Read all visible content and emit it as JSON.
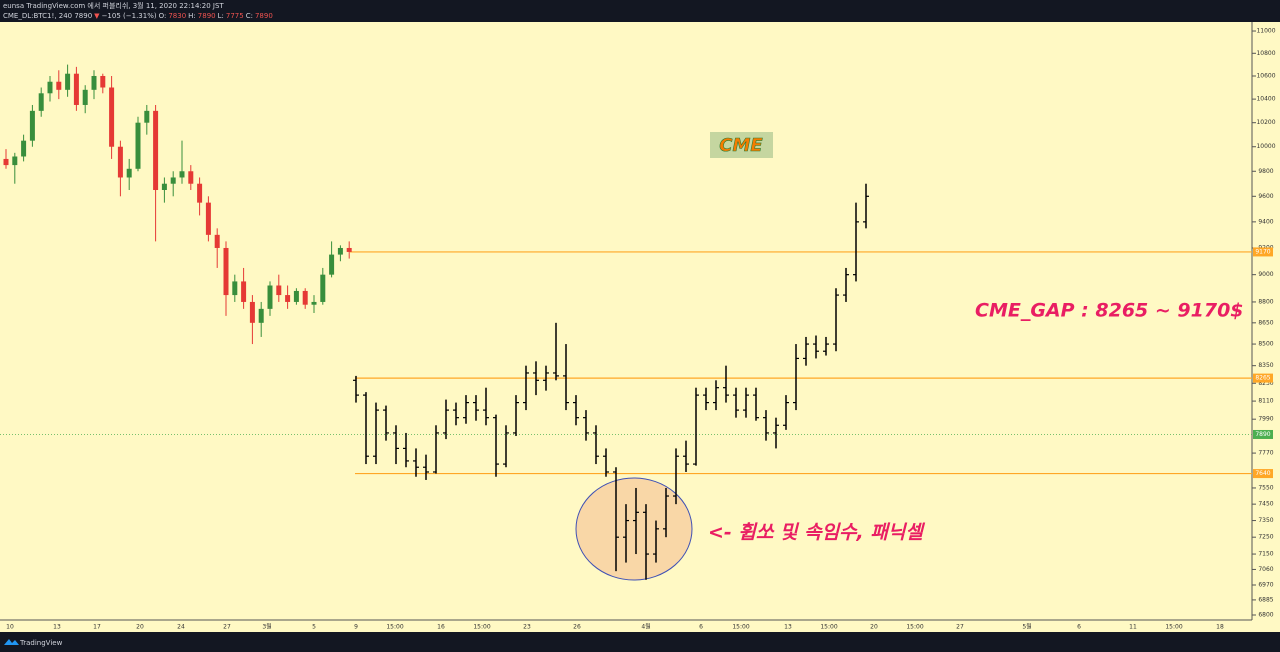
{
  "header": {
    "line1": "eunsa TradingView.com 에서 퍼블리쉬, 3월 11, 2020 22:14:20 JST",
    "line2": [
      "CME_DL:BTC1!, 240 7890",
      "▼",
      "−105 (−1.31%)",
      "O:",
      "7830",
      "H:",
      "7890",
      "L:",
      "7775",
      "C:",
      "7890"
    ]
  },
  "chart_data": {
    "type": "candlestick",
    "log_scale": true,
    "grid": false,
    "ylim": [
      6772,
      11082
    ],
    "yticks": [
      11000,
      10800,
      10600,
      10400,
      10200,
      10000,
      9800,
      9600,
      9400,
      9200,
      9000,
      8800,
      8650,
      8500,
      8350,
      8230,
      8110,
      7990,
      7770,
      7550,
      7450,
      7350,
      7250,
      7150,
      7060,
      6970,
      6885,
      6800
    ],
    "x_labels": [
      "10",
      "13",
      "17",
      "20",
      "24",
      "27",
      "3월",
      "5",
      "9",
      "15:00",
      "16",
      "15:00",
      "23",
      "26",
      "4월",
      "6",
      "15:00",
      "13",
      "15:00",
      "20",
      "15:00",
      "27",
      "5월",
      "6",
      "11",
      "15:00",
      "18"
    ],
    "series": [
      {
        "style": "candles",
        "up_color": "#388e3c",
        "down_color": "#e53935",
        "ohlc": [
          [
            9900,
            9980,
            9820,
            9850
          ],
          [
            9850,
            9950,
            9700,
            9920
          ],
          [
            9920,
            10100,
            9880,
            10050
          ],
          [
            10050,
            10350,
            10000,
            10300
          ],
          [
            10300,
            10500,
            10250,
            10450
          ],
          [
            10450,
            10600,
            10380,
            10550
          ],
          [
            10550,
            10650,
            10400,
            10480
          ],
          [
            10480,
            10700,
            10420,
            10620
          ],
          [
            10620,
            10680,
            10300,
            10350
          ],
          [
            10350,
            10520,
            10280,
            10480
          ],
          [
            10480,
            10650,
            10400,
            10600
          ],
          [
            10600,
            10620,
            10450,
            10500
          ],
          [
            10500,
            10600,
            9900,
            10000
          ],
          [
            10000,
            10050,
            9600,
            9750
          ],
          [
            9750,
            9900,
            9650,
            9820
          ],
          [
            9820,
            10250,
            9800,
            10200
          ],
          [
            10200,
            10350,
            10100,
            10300
          ],
          [
            10300,
            10350,
            9250,
            9650
          ],
          [
            9650,
            9750,
            9550,
            9700
          ],
          [
            9700,
            9800,
            9600,
            9750
          ],
          [
            9750,
            10050,
            9700,
            9800
          ],
          [
            9800,
            9850,
            9650,
            9700
          ],
          [
            9700,
            9750,
            9450,
            9550
          ],
          [
            9550,
            9600,
            9250,
            9300
          ],
          [
            9300,
            9350,
            9050,
            9200
          ],
          [
            9200,
            9250,
            8700,
            8850
          ],
          [
            8850,
            9000,
            8800,
            8950
          ],
          [
            8950,
            9050,
            8750,
            8800
          ],
          [
            8800,
            8850,
            8500,
            8650
          ],
          [
            8650,
            8800,
            8550,
            8750
          ],
          [
            8750,
            8950,
            8700,
            8920
          ],
          [
            8920,
            9000,
            8800,
            8850
          ],
          [
            8850,
            8920,
            8750,
            8800
          ],
          [
            8800,
            8900,
            8780,
            8880
          ],
          [
            8880,
            8900,
            8750,
            8780
          ],
          [
            8780,
            8850,
            8720,
            8800
          ],
          [
            8800,
            9050,
            8780,
            9000
          ],
          [
            9000,
            9250,
            8980,
            9150
          ],
          [
            9150,
            9220,
            9100,
            9200
          ],
          [
            9200,
            9250,
            9120,
            9170
          ]
        ]
      },
      {
        "style": "bars",
        "color": "#000000",
        "ohlc": [
          [
            8250,
            8280,
            8100,
            8150
          ],
          [
            8150,
            8170,
            7700,
            7750
          ],
          [
            7750,
            8100,
            7700,
            8050
          ],
          [
            8050,
            8080,
            7850,
            7900
          ],
          [
            7900,
            7950,
            7700,
            7800
          ],
          [
            7800,
            7900,
            7680,
            7720
          ],
          [
            7720,
            7800,
            7620,
            7680
          ],
          [
            7680,
            7760,
            7600,
            7650
          ],
          [
            7650,
            7950,
            7640,
            7900
          ],
          [
            7900,
            8120,
            7860,
            8050
          ],
          [
            8050,
            8100,
            7950,
            8000
          ],
          [
            8000,
            8150,
            7960,
            8100
          ],
          [
            8100,
            8150,
            7980,
            8050
          ],
          [
            8050,
            8200,
            7950,
            8000
          ],
          [
            8000,
            8020,
            7620,
            7700
          ],
          [
            7700,
            7950,
            7680,
            7900
          ],
          [
            7900,
            8150,
            7880,
            8100
          ],
          [
            8100,
            8350,
            8050,
            8300
          ],
          [
            8300,
            8380,
            8150,
            8250
          ],
          [
            8250,
            8350,
            8180,
            8300
          ],
          [
            8300,
            8650,
            8250,
            8280
          ],
          [
            8280,
            8500,
            8050,
            8100
          ],
          [
            8100,
            8150,
            7950,
            8000
          ],
          [
            8000,
            8050,
            7850,
            7900
          ],
          [
            7900,
            7950,
            7700,
            7750
          ],
          [
            7750,
            7800,
            7620,
            7650
          ],
          [
            7650,
            7680,
            7050,
            7250
          ],
          [
            7250,
            7450,
            7100,
            7350
          ],
          [
            7350,
            7550,
            7150,
            7400
          ],
          [
            7400,
            7450,
            7000,
            7150
          ],
          [
            7150,
            7350,
            7100,
            7300
          ],
          [
            7300,
            7550,
            7250,
            7500
          ],
          [
            7500,
            7800,
            7450,
            7750
          ],
          [
            7750,
            7850,
            7650,
            7700
          ],
          [
            7700,
            8200,
            7690,
            8150
          ],
          [
            8150,
            8200,
            8050,
            8100
          ],
          [
            8100,
            8250,
            8050,
            8200
          ],
          [
            8200,
            8350,
            8100,
            8150
          ],
          [
            8150,
            8200,
            8000,
            8050
          ],
          [
            8050,
            8200,
            8000,
            8150
          ],
          [
            8150,
            8200,
            7980,
            8000
          ],
          [
            8000,
            8050,
            7850,
            7900
          ],
          [
            7900,
            8000,
            7800,
            7950
          ],
          [
            7950,
            8150,
            7920,
            8100
          ],
          [
            8100,
            8500,
            8050,
            8400
          ],
          [
            8400,
            8550,
            8350,
            8500
          ],
          [
            8500,
            8560,
            8400,
            8450
          ],
          [
            8450,
            8550,
            8420,
            8500
          ],
          [
            8500,
            8900,
            8450,
            8850
          ],
          [
            8850,
            9050,
            8800,
            9000
          ],
          [
            9000,
            9550,
            8950,
            9400
          ],
          [
            9400,
            9700,
            9350,
            9600
          ]
        ]
      }
    ],
    "price_lines": [
      {
        "value": 9170,
        "color": "#ffa726",
        "style": "solid"
      },
      {
        "value": 8265,
        "color": "#ffa726",
        "style": "solid"
      },
      {
        "value": 7640,
        "color": "#ffa726",
        "style": "solid"
      },
      {
        "value": 7890,
        "color": "#4caf50",
        "style": "dotted"
      }
    ],
    "annotations": {
      "box": "CME",
      "gap": "CME_GAP : 8265 ~ 9170$",
      "note": "<- 휩쏘 및 속임수, 패닉셀"
    }
  },
  "footer": {
    "brand": "TradingView"
  }
}
